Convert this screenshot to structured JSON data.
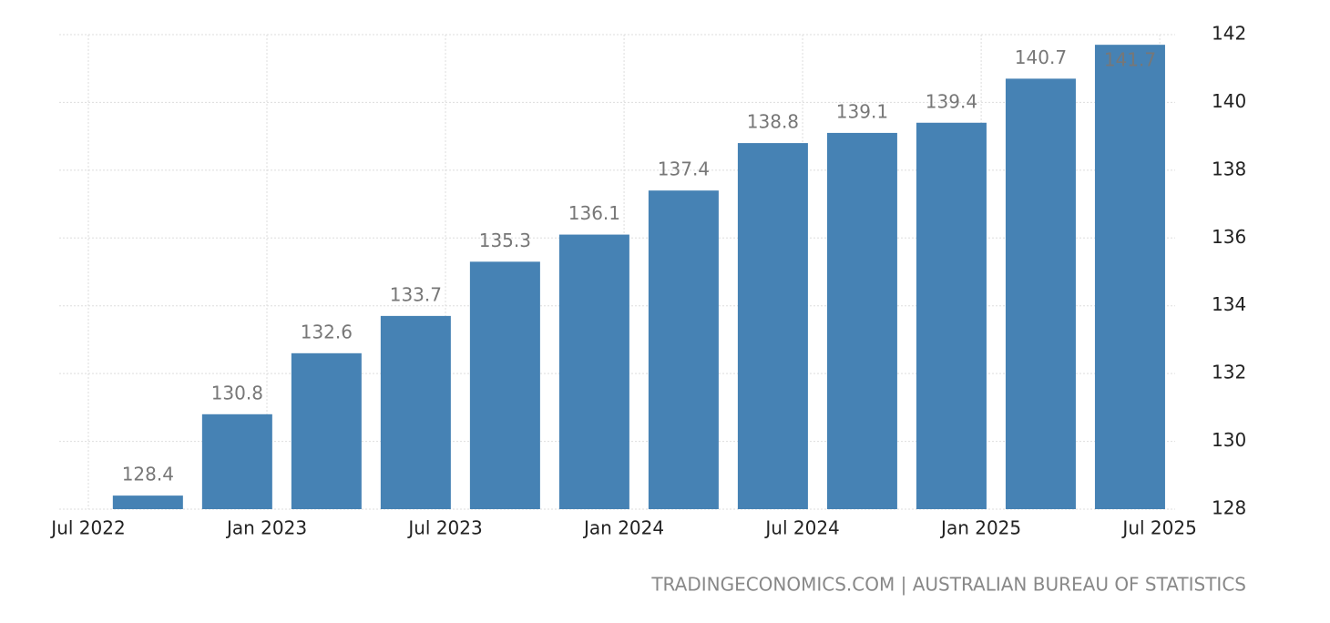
{
  "chart_data": {
    "type": "bar",
    "x": [
      "2022-09",
      "2022-12",
      "2023-03",
      "2023-06",
      "2023-09",
      "2023-12",
      "2024-03",
      "2024-06",
      "2024-09",
      "2024-12",
      "2025-03",
      "2025-06"
    ],
    "values": [
      128.4,
      130.8,
      132.6,
      133.7,
      135.3,
      136.1,
      137.4,
      138.8,
      139.1,
      139.4,
      140.7,
      141.7
    ],
    "color": "#4682b4",
    "ylim": [
      128,
      142
    ],
    "yticks": [
      128,
      130,
      132,
      134,
      136,
      138,
      140,
      142
    ],
    "xticks": [
      {
        "value": "2022-07",
        "label": "Jul 2022"
      },
      {
        "value": "2023-01",
        "label": "Jan 2023"
      },
      {
        "value": "2023-07",
        "label": "Jul 2023"
      },
      {
        "value": "2024-01",
        "label": "Jan 2024"
      },
      {
        "value": "2024-07",
        "label": "Jul 2024"
      },
      {
        "value": "2025-01",
        "label": "Jan 2025"
      },
      {
        "value": "2025-07",
        "label": "Jul 2025"
      }
    ],
    "grid": true,
    "source": "TRADINGECONOMICS.COM | AUSTRALIAN BUREAU OF STATISTICS"
  }
}
